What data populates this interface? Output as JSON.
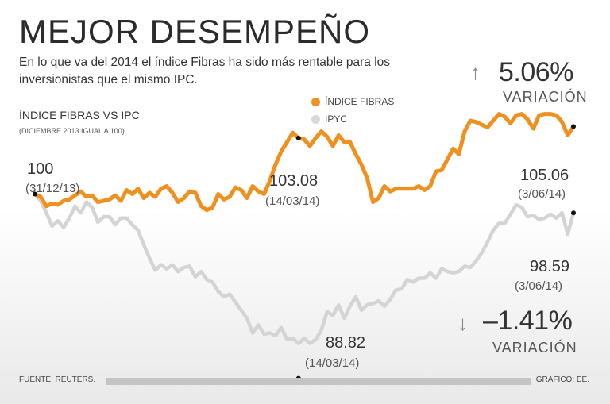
{
  "title": "MEJOR DESEMPEÑO",
  "subtitle": "En lo que va del 2014 el índice Fibras ha sido más rentable para los inversionistas que el mismo IPC.",
  "chart_title": "ÍNDICE FIBRAS VS IPC",
  "chart_note": "(DICIEMBRE 2013 IGUAL A 100)",
  "legend": [
    {
      "name": "ÍNDICE FIBRAS",
      "color": "#f0901e"
    },
    {
      "name": "IPYC",
      "color": "#d4d4d4"
    }
  ],
  "fibras_change": {
    "value": "5.06%",
    "label": "VARIACIÓN",
    "arrow": "arrow-up-icon"
  },
  "ipc_change": {
    "value": "–1.41%",
    "label": "VARIACIÓN",
    "arrow": "arrow-down-icon"
  },
  "annotations": {
    "start": {
      "value": "100",
      "date": "(31/12/13)"
    },
    "fibras_mid": {
      "value": "103.08",
      "date": "(14/03/14)"
    },
    "fibras_end": {
      "value": "105.06",
      "date": "(3/06/14)"
    },
    "ipc_mid": {
      "value": "88.82",
      "date": "(14/03/14)"
    },
    "ipc_end": {
      "value": "98.59",
      "date": "(3/06/14)"
    }
  },
  "source": "FUENTE: REUTERS.",
  "credit": "GRÁFICO: EE.",
  "chart_data": {
    "type": "line",
    "x_start": "31/12/13",
    "x_end": "3/06/14",
    "ylim": [
      86,
      108
    ],
    "series": [
      {
        "name": "ÍNDICE FIBRAS",
        "color": "#f0901e",
        "values": [
          100,
          99.8,
          99.1,
          99.3,
          99.2,
          99.5,
          99.6,
          99.9,
          100.2,
          99.8,
          99.9,
          99.4,
          99.5,
          99.6,
          99.9,
          99.5,
          100.3,
          100.0,
          100.4,
          99.7,
          100.1,
          99.8,
          100.4,
          100.6,
          100.1,
          99.4,
          99.7,
          100.2,
          100.1,
          99.1,
          98.8,
          99.0,
          100.0,
          99.6,
          99.8,
          100.5,
          100.3,
          99.7,
          100.6,
          100.2,
          100.0,
          101.0,
          102.2,
          103.2,
          103.9,
          104.6,
          104.2,
          104.1,
          103.6,
          104.2,
          104.7,
          104.3,
          103.6,
          104.4,
          103.9,
          103.9,
          103.0,
          102.2,
          101.2,
          99.4,
          99.7,
          100.6,
          100.2,
          100.4,
          100.4,
          100.4,
          100.4,
          100.6,
          100.3,
          100.6,
          101.7,
          101.8,
          102.6,
          103.4,
          103.0,
          104.7,
          105.5,
          105.4,
          105.2,
          105.0,
          105.5,
          106.0,
          105.8,
          105.3,
          105.9,
          106.0,
          105.6,
          104.9,
          105.9,
          106.0,
          106.0,
          105.9,
          105.4,
          104.4,
          105.06
        ]
      },
      {
        "name": "IPYC",
        "color": "#d4d4d4",
        "values": [
          100,
          99.5,
          98.6,
          97.6,
          98.0,
          97.5,
          98.2,
          99.1,
          98.6,
          99.4,
          99.0,
          97.9,
          98.3,
          98.3,
          97.7,
          98.2,
          98.2,
          97.7,
          97.3,
          96.2,
          95.2,
          94.3,
          94.7,
          94.4,
          94.7,
          94.2,
          94.5,
          94.6,
          93.8,
          94.2,
          93.6,
          93.4,
          92.7,
          92.3,
          92.5,
          91.9,
          91.3,
          90.7,
          89.6,
          90.2,
          89.5,
          89.6,
          89.4,
          90.0,
          89.1,
          89.2,
          88.8,
          89.2,
          88.82,
          89.1,
          89.8,
          91.2,
          90.9,
          91.7,
          90.7,
          91.6,
          92.3,
          91.3,
          91.7,
          91.8,
          92.0,
          91.6,
          92.1,
          92.8,
          92.9,
          93.6,
          93.4,
          93.7,
          93.7,
          94.1,
          93.7,
          94.4,
          94.2,
          94.1,
          94.2,
          94.6,
          94.5,
          95.0,
          95.6,
          96.4,
          97.3,
          97.8,
          97.8,
          98.5,
          99.2,
          99.0,
          98.3,
          98.4,
          98.1,
          98.2,
          98.5,
          98.2,
          98.6,
          97.0,
          98.59
        ]
      }
    ]
  }
}
